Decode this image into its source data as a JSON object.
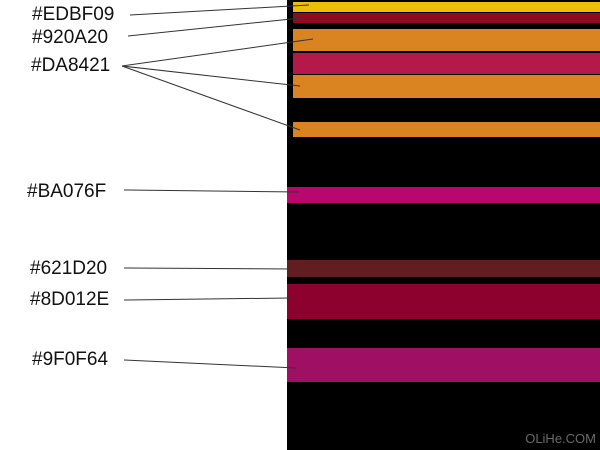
{
  "stripes": [
    {
      "color": "#EDBF09"
    },
    {
      "color": "#920A20"
    },
    {
      "color": "#DA8421"
    },
    {
      "color": "#B5184A"
    },
    {
      "color": "#DA8421"
    },
    {
      "color": "#DA8421"
    },
    {
      "color": "#BA076F"
    },
    {
      "color": "#621D20"
    },
    {
      "color": "#8D012E"
    },
    {
      "color": "#9F0F64"
    }
  ],
  "labels": [
    {
      "text": "#EDBF09"
    },
    {
      "text": "#920A20"
    },
    {
      "text": "#DA8421"
    },
    {
      "text": "#BA076F"
    },
    {
      "text": "#621D20"
    },
    {
      "text": "#8D012E"
    },
    {
      "text": "#9F0F64"
    }
  ],
  "watermark": "OLiHe.COM"
}
